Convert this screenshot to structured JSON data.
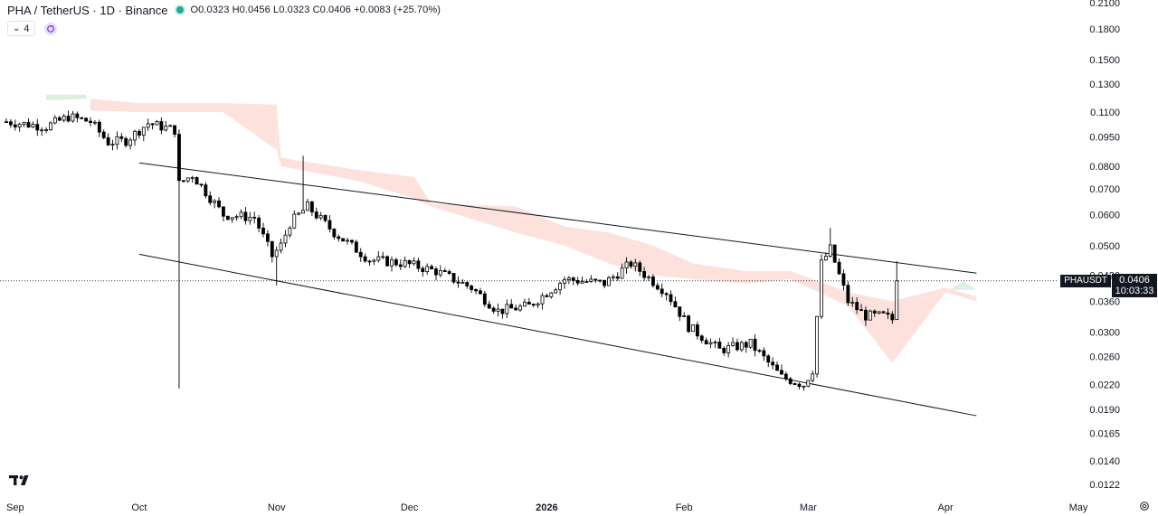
{
  "header": {
    "symbol_title": "PHA / TetherUS · 1D · Binance",
    "ohlc": "O0.0323 H0.0456 L0.0323 C0.0406 +0.0083 (+25.70%)",
    "status_color": "#22ab94",
    "indicator_count": "4"
  },
  "price_tag": {
    "symbol": "PHAUSDT",
    "price": "0.0406",
    "countdown": "10:03:33"
  },
  "colors": {
    "bull_body": "#ffffff",
    "bear_body": "#000000",
    "wick": "#000000",
    "cloud_bear": "#fbdcd6",
    "cloud_bull": "#dcefe0"
  },
  "chart_data": {
    "type": "candlestick",
    "scale": "log",
    "ylim": [
      0.011,
      0.214
    ],
    "y_ticks": [
      "0.2100",
      "0.1800",
      "0.1500",
      "0.1300",
      "0.1100",
      "0.0950",
      "0.0800",
      "0.0700",
      "0.0600",
      "0.0500",
      "0.0420",
      "0.0360",
      "0.0300",
      "0.0260",
      "0.0220",
      "0.0190",
      "0.0165",
      "0.0140",
      "0.0122"
    ],
    "x_ticks": [
      "Sep",
      "Oct",
      "Nov",
      "Dec",
      "2026",
      "Feb",
      "Mar",
      "Apr",
      "May"
    ],
    "x_tick_dates": [
      "2025-09-01",
      "2025-10-01",
      "2025-11-01",
      "2025-12-01",
      "2026-01-01",
      "2026-02-01",
      "2026-03-01",
      "2026-04-01",
      "2026-05-01"
    ],
    "last_price": 0.0406,
    "price_line": 0.0406,
    "channel": {
      "upper": {
        "start": [
          "2025-10-01",
          0.0815
        ],
        "end": [
          "2026-04-08",
          0.0425
        ]
      },
      "lower": {
        "start": [
          "2025-10-01",
          0.0475
        ],
        "end": [
          "2026-04-08",
          0.0183
        ]
      }
    },
    "anchors": [
      [
        "2025-09-01",
        0.104
      ],
      [
        "2025-09-10",
        0.101
      ],
      [
        "2025-09-15",
        0.107
      ],
      [
        "2025-09-20",
        0.104
      ],
      [
        "2025-09-24",
        0.092
      ],
      [
        "2025-09-28",
        0.093
      ],
      [
        "2025-10-03",
        0.103
      ],
      [
        "2025-10-09",
        0.099
      ],
      [
        "2025-10-10",
        0.072
      ],
      [
        "2025-10-13",
        0.076
      ],
      [
        "2025-10-20",
        0.06
      ],
      [
        "2025-10-27",
        0.059
      ],
      [
        "2025-10-31",
        0.047
      ],
      [
        "2025-11-02",
        0.05
      ],
      [
        "2025-11-04",
        0.057
      ],
      [
        "2025-11-08",
        0.063
      ],
      [
        "2025-11-14",
        0.054
      ],
      [
        "2025-11-22",
        0.046
      ],
      [
        "2025-11-30",
        0.045
      ],
      [
        "2025-12-07",
        0.043
      ],
      [
        "2025-12-15",
        0.039
      ],
      [
        "2025-12-21",
        0.034
      ],
      [
        "2025-12-28",
        0.035
      ],
      [
        "2026-01-05",
        0.041
      ],
      [
        "2026-01-14",
        0.04
      ],
      [
        "2026-01-20",
        0.045
      ],
      [
        "2026-01-28",
        0.038
      ],
      [
        "2026-02-02",
        0.031
      ],
      [
        "2026-02-09",
        0.027
      ],
      [
        "2026-02-16",
        0.028
      ],
      [
        "2026-02-23",
        0.023
      ],
      [
        "2026-02-28",
        0.022
      ],
      [
        "2026-03-02",
        0.024
      ],
      [
        "2026-03-04",
        0.045
      ],
      [
        "2026-03-06",
        0.049
      ],
      [
        "2026-03-10",
        0.036
      ],
      [
        "2026-03-14",
        0.033
      ],
      [
        "2026-03-18",
        0.033
      ],
      [
        "2026-03-20",
        0.0323
      ]
    ],
    "last_candle": {
      "date": "2026-03-21",
      "o": 0.0323,
      "h": 0.0456,
      "l": 0.0323,
      "c": 0.0406
    },
    "spikes": [
      {
        "date": "2025-10-10",
        "low": 0.0215
      },
      {
        "date": "2025-11-07",
        "high": 0.085
      },
      {
        "date": "2025-11-01",
        "low": 0.0395
      },
      {
        "date": "2026-03-06",
        "high": 0.0555
      }
    ],
    "cloud": {
      "upper": [
        [
          "2025-09-20",
          0.119
        ],
        [
          "2025-10-01",
          0.116
        ],
        [
          "2025-10-20",
          0.116
        ],
        [
          "2025-11-01",
          0.115
        ],
        [
          "2025-11-02",
          0.084
        ],
        [
          "2025-11-20",
          0.078
        ],
        [
          "2025-12-02",
          0.075
        ],
        [
          "2025-12-06",
          0.064
        ],
        [
          "2025-12-25",
          0.063
        ],
        [
          "2026-01-05",
          0.056
        ],
        [
          "2026-01-15",
          0.054
        ],
        [
          "2026-01-25",
          0.05
        ],
        [
          "2026-02-03",
          0.045
        ],
        [
          "2026-02-15",
          0.043
        ],
        [
          "2026-02-25",
          0.043
        ],
        [
          "2026-03-10",
          0.038
        ],
        [
          "2026-03-20",
          0.036
        ],
        [
          "2026-04-01",
          0.039
        ],
        [
          "2026-04-08",
          0.037
        ]
      ],
      "lower": [
        [
          "2025-09-20",
          0.111
        ],
        [
          "2025-10-01",
          0.11
        ],
        [
          "2025-10-20",
          0.11
        ],
        [
          "2025-11-01",
          0.088
        ],
        [
          "2025-11-02",
          0.08
        ],
        [
          "2025-11-20",
          0.073
        ],
        [
          "2025-12-02",
          0.066
        ],
        [
          "2025-12-06",
          0.063
        ],
        [
          "2025-12-25",
          0.054
        ],
        [
          "2026-01-05",
          0.05
        ],
        [
          "2026-01-15",
          0.045
        ],
        [
          "2026-01-25",
          0.042
        ],
        [
          "2026-02-03",
          0.041
        ],
        [
          "2026-02-15",
          0.04
        ],
        [
          "2026-02-25",
          0.041
        ],
        [
          "2026-03-10",
          0.035
        ],
        [
          "2026-03-20",
          0.025
        ],
        [
          "2026-04-01",
          0.038
        ],
        [
          "2026-04-08",
          0.036
        ]
      ]
    }
  }
}
